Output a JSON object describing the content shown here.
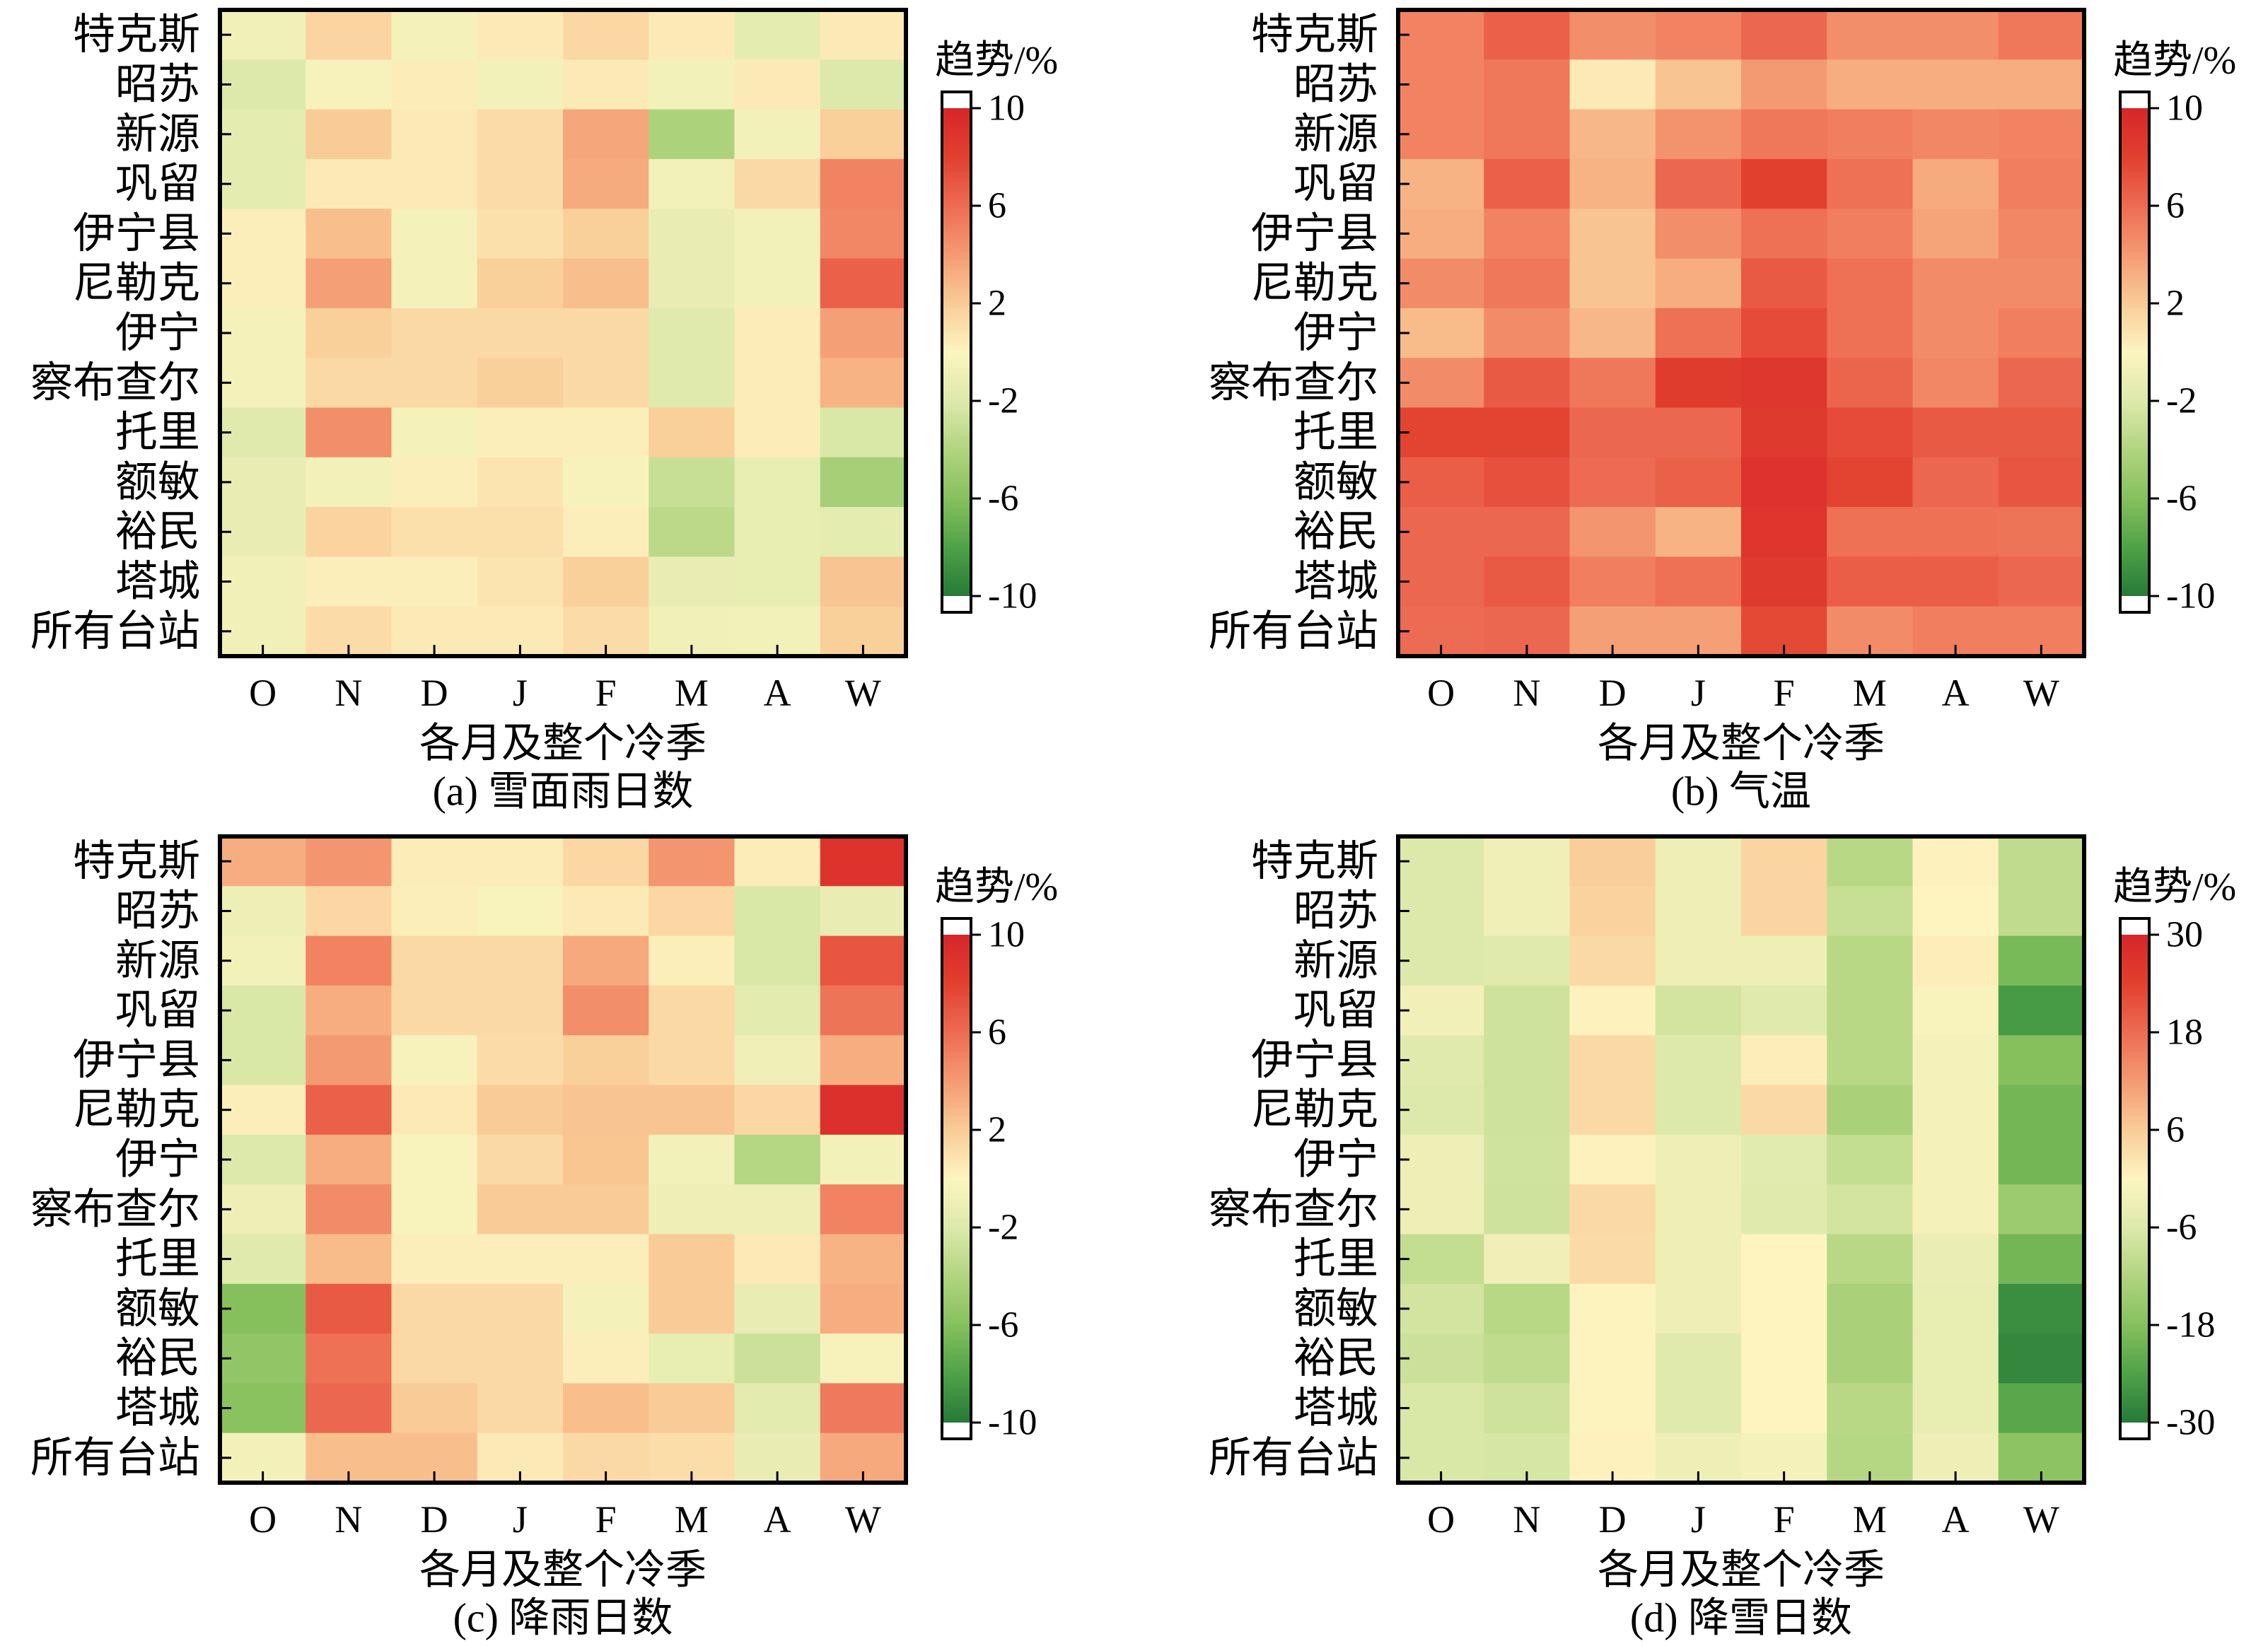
{
  "colorscale": [
    "#277a38",
    "#4fa247",
    "#86c05d",
    "#b1d47f",
    "#dde9ab",
    "#fdf4c0",
    "#f9cb96",
    "#f49a72",
    "#ed6b52",
    "#e2402f",
    "#d7262a"
  ],
  "extend_color": "#ffffff",
  "chart_data": [
    {
      "type": "heatmap",
      "title": "(a) 雪面雨日数",
      "xlabel": "各月及整个冷季",
      "x": [
        "O",
        "N",
        "D",
        "J",
        "F",
        "M",
        "A",
        "W"
      ],
      "y": [
        "特克斯",
        "昭苏",
        "新源",
        "巩留",
        "伊宁县",
        "尼勒克",
        "伊宁",
        "察布查尔",
        "托里",
        "额敏",
        "裕民",
        "塔城",
        "所有台站"
      ],
      "values": [
        [
          -0.8,
          1.5,
          -0.5,
          0.5,
          1.4,
          0.5,
          -1.5,
          0.5
        ],
        [
          -2.0,
          -0.4,
          0.4,
          -0.6,
          0.5,
          -0.6,
          0.5,
          -2.0
        ],
        [
          -1.5,
          2.0,
          0.5,
          1.2,
          3.5,
          -4.2,
          -0.6,
          1.8
        ],
        [
          -1.5,
          0.5,
          0.5,
          1.2,
          3.3,
          -0.6,
          1.3,
          5.0
        ],
        [
          0.3,
          2.5,
          -0.5,
          1.0,
          1.8,
          -1.2,
          -0.6,
          4.8
        ],
        [
          0.3,
          3.8,
          -0.5,
          1.8,
          2.5,
          -1.2,
          -0.6,
          6.5
        ],
        [
          -0.5,
          1.8,
          1.3,
          1.3,
          1.3,
          -1.8,
          0.4,
          3.8
        ],
        [
          -0.5,
          1.3,
          1.3,
          1.8,
          1.3,
          -1.8,
          0.4,
          3.0
        ],
        [
          -1.8,
          4.5,
          -0.5,
          0.3,
          0.3,
          1.8,
          0.4,
          -2.2
        ],
        [
          -1.2,
          -0.6,
          0.3,
          0.8,
          -0.4,
          -3.0,
          -1.3,
          -4.5
        ],
        [
          -1.2,
          1.6,
          1.0,
          1.0,
          0.3,
          -3.5,
          -1.3,
          -1.5
        ],
        [
          -0.8,
          0.3,
          0.3,
          0.8,
          1.8,
          -1.2,
          -1.3,
          2.3
        ],
        [
          -0.8,
          1.2,
          0.5,
          0.5,
          1.2,
          -0.8,
          -0.6,
          1.8
        ]
      ],
      "colorbar": {
        "title": "趋势/%",
        "range": [
          -10,
          10
        ],
        "ticks": [
          10,
          6,
          2,
          -2,
          -6,
          -10
        ]
      }
    },
    {
      "type": "heatmap",
      "title": "(b) 气温",
      "xlabel": "各月及整个冷季",
      "x": [
        "O",
        "N",
        "D",
        "J",
        "F",
        "M",
        "A",
        "W"
      ],
      "y": [
        "特克斯",
        "昭苏",
        "新源",
        "巩留",
        "伊宁县",
        "尼勒克",
        "伊宁",
        "察布查尔",
        "托里",
        "额敏",
        "裕民",
        "塔城",
        "所有台站"
      ],
      "values": [
        [
          5.0,
          6.5,
          4.5,
          5.0,
          6.2,
          4.5,
          4.5,
          5.5
        ],
        [
          5.0,
          5.5,
          0.5,
          2.3,
          4.0,
          3.2,
          3.2,
          3.2
        ],
        [
          5.0,
          5.5,
          2.8,
          4.3,
          5.5,
          5.2,
          4.8,
          5.0
        ],
        [
          3.0,
          6.5,
          3.0,
          6.2,
          8.0,
          5.8,
          3.3,
          5.2
        ],
        [
          3.2,
          5.0,
          2.3,
          4.5,
          5.8,
          5.2,
          3.6,
          4.8
        ],
        [
          4.6,
          5.5,
          2.3,
          3.2,
          6.8,
          5.8,
          4.6,
          4.6
        ],
        [
          2.6,
          4.6,
          2.8,
          5.8,
          7.5,
          5.8,
          4.6,
          5.2
        ],
        [
          4.6,
          6.8,
          5.5,
          8.3,
          8.7,
          6.3,
          4.8,
          6.2
        ],
        [
          7.8,
          7.8,
          6.2,
          6.2,
          8.5,
          7.5,
          6.8,
          6.8
        ],
        [
          6.6,
          7.2,
          6.0,
          6.5,
          9.0,
          7.8,
          6.2,
          7.0
        ],
        [
          6.2,
          6.2,
          4.2,
          3.0,
          8.8,
          5.8,
          5.8,
          5.6
        ],
        [
          6.2,
          6.8,
          5.2,
          5.8,
          8.5,
          6.6,
          6.6,
          6.2
        ],
        [
          6.0,
          6.2,
          3.8,
          3.8,
          7.6,
          4.6,
          5.2,
          5.2
        ]
      ],
      "colorbar": {
        "title": "趋势/%",
        "range": [
          -10,
          10
        ],
        "ticks": [
          10,
          6,
          2,
          -2,
          -6,
          -10
        ]
      }
    },
    {
      "type": "heatmap",
      "title": "(c) 降雨日数",
      "xlabel": "各月及整个冷季",
      "x": [
        "O",
        "N",
        "D",
        "J",
        "F",
        "M",
        "A",
        "W"
      ],
      "y": [
        "特克斯",
        "昭苏",
        "新源",
        "巩留",
        "伊宁县",
        "尼勒克",
        "伊宁",
        "察布查尔",
        "托里",
        "额敏",
        "裕民",
        "塔城",
        "所有台站"
      ],
      "values": [
        [
          3.2,
          4.2,
          0.4,
          0.4,
          1.4,
          4.2,
          0.4,
          9.0
        ],
        [
          -1.0,
          1.4,
          0.3,
          -0.3,
          0.5,
          1.4,
          -2.2,
          -1.2
        ],
        [
          -0.6,
          5.0,
          1.3,
          1.3,
          3.4,
          0.3,
          -2.2,
          7.0
        ],
        [
          -2.2,
          3.2,
          1.3,
          1.3,
          4.5,
          1.3,
          -1.6,
          5.6
        ],
        [
          -2.2,
          4.0,
          -0.4,
          1.2,
          1.8,
          1.3,
          -0.9,
          3.2
        ],
        [
          0.3,
          6.5,
          0.5,
          2.0,
          2.3,
          2.3,
          1.4,
          9.2
        ],
        [
          -2.0,
          3.2,
          -0.3,
          1.3,
          2.2,
          -0.6,
          -3.8,
          -0.6
        ],
        [
          -1.0,
          4.6,
          -0.3,
          2.0,
          2.0,
          -1.0,
          -1.0,
          5.0
        ],
        [
          -1.8,
          2.6,
          0.3,
          0.3,
          0.3,
          2.0,
          0.5,
          3.0
        ],
        [
          -6.0,
          6.8,
          1.3,
          1.3,
          -0.5,
          2.0,
          -1.2,
          3.2
        ],
        [
          -5.5,
          5.8,
          1.3,
          1.3,
          0.3,
          -1.3,
          -2.8,
          -0.4
        ],
        [
          -5.8,
          6.2,
          2.0,
          1.3,
          2.5,
          2.0,
          -1.6,
          5.4
        ],
        [
          -0.6,
          2.5,
          2.5,
          0.5,
          1.3,
          1.1,
          -1.2,
          3.4
        ]
      ],
      "colorbar": {
        "title": "趋势/%",
        "range": [
          -10,
          10
        ],
        "ticks": [
          10,
          6,
          2,
          -2,
          -6,
          -10
        ]
      }
    },
    {
      "type": "heatmap",
      "title": "(d) 降雪日数",
      "xlabel": "各月及整个冷季",
      "x": [
        "O",
        "N",
        "D",
        "J",
        "F",
        "M",
        "A",
        "W"
      ],
      "y": [
        "特克斯",
        "昭苏",
        "新源",
        "巩留",
        "伊宁县",
        "尼勒克",
        "伊宁",
        "察布查尔",
        "托里",
        "额敏",
        "裕民",
        "塔城",
        "所有台站"
      ],
      "values": [
        [
          -6.0,
          -2.5,
          5.5,
          -2.8,
          4.5,
          -11.0,
          0.5,
          -10.0
        ],
        [
          -6.0,
          -2.5,
          5.0,
          -2.8,
          4.5,
          -9.0,
          0.0,
          -10.0
        ],
        [
          -6.0,
          -5.5,
          4.0,
          -2.8,
          -2.8,
          -11.0,
          1.0,
          -19.5
        ],
        [
          -2.0,
          -8.0,
          0.5,
          -7.5,
          -5.5,
          -11.0,
          -1.0,
          -25.0
        ],
        [
          -5.5,
          -8.0,
          4.0,
          -6.0,
          1.0,
          -11.0,
          -1.5,
          -18.0
        ],
        [
          -6.0,
          -8.0,
          4.0,
          -6.0,
          4.0,
          -13.0,
          -1.5,
          -20.0
        ],
        [
          -3.0,
          -7.8,
          0.5,
          -2.8,
          -5.0,
          -9.5,
          -1.5,
          -20.0
        ],
        [
          -3.0,
          -8.0,
          4.0,
          -2.8,
          -5.5,
          -7.5,
          -1.5,
          -15.0
        ],
        [
          -9.5,
          -2.5,
          3.8,
          -2.8,
          0.0,
          -11.0,
          -3.5,
          -20.0
        ],
        [
          -7.5,
          -11.0,
          0.2,
          -3.0,
          0.0,
          -13.0,
          -4.0,
          -27.0
        ],
        [
          -8.5,
          -10.0,
          0.2,
          -5.5,
          0.0,
          -13.0,
          -4.0,
          -28.0
        ],
        [
          -6.5,
          -8.0,
          0.2,
          -5.5,
          0.0,
          -11.0,
          -4.0,
          -23.0
        ],
        [
          -6.5,
          -7.0,
          0.5,
          -3.0,
          -1.5,
          -11.5,
          -2.8,
          -17.0
        ]
      ],
      "colorbar": {
        "title": "趋势/%",
        "range": [
          -30,
          30
        ],
        "ticks": [
          30,
          18,
          6,
          -6,
          -18,
          -30
        ]
      }
    }
  ]
}
